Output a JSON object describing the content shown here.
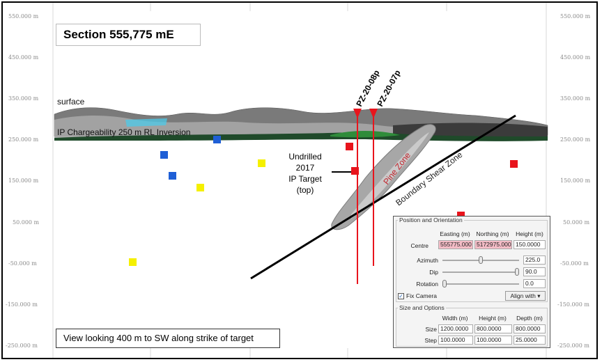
{
  "title": "Section 555,775 mE",
  "footer_note": "View looking 400 m to SW along strike of target",
  "axis": {
    "left_ticks": [
      "550.000 m",
      "450.000 m",
      "350.000 m",
      "250.000 m",
      "150.000 m",
      "50.000 m",
      "-50.000 m",
      "-150.000 m",
      "-250.000 m"
    ],
    "right_ticks": [
      "550.000 m",
      "450.000 m",
      "350.000 m",
      "250.000 m",
      "150.000 m",
      "50.000 m",
      "-50.000 m",
      "-150.000 m",
      "-250.000 m"
    ]
  },
  "labels": {
    "surface": "surface",
    "ip_inversion": "IP Chargeability 250 m RL Inversion",
    "hole_a": "PZ-20-08p",
    "hole_b": "PZ-20-07p",
    "pine_zone": "Pine Zone",
    "shear_zone": "Boundary Shear Zone",
    "target_lines": [
      "Undrilled",
      "2017",
      "IP Target",
      "(top)"
    ]
  },
  "colors": {
    "drillhole": "#e8141c",
    "shear": "#000000",
    "blue_marker": "#1f5fd6",
    "yellow_marker": "#f5f000",
    "red_marker": "#e8141c",
    "ip_band": "#1f4a2a"
  },
  "panel": {
    "section_position": "Position and Orientation",
    "col_easting": "Easting (m)",
    "col_northing": "Northing (m)",
    "col_height": "Height (m)",
    "centre_label": "Centre",
    "centre_easting": "555775.000",
    "centre_northing": "5172975.000",
    "centre_height": "150.0000",
    "azimuth_label": "Azimuth",
    "azimuth_value": "225.0",
    "dip_label": "Dip",
    "dip_value": "90.0",
    "rotation_label": "Rotation",
    "rotation_value": "0.0",
    "fix_camera_label": "Fix Camera",
    "align_with_label": "Align with",
    "section_size": "Size and Options",
    "col_width": "Width (m)",
    "col_height2": "Height (m)",
    "col_depth": "Depth (m)",
    "size_label": "Size",
    "size_width": "1200.0000",
    "size_height": "800.0000",
    "size_depth": "800.0000",
    "step_label": "Step",
    "step_width": "100.0000",
    "step_height": "100.0000",
    "step_depth": "25.0000",
    "azimuth_slider": 0.5,
    "dip_slider": 1.0,
    "rotation_slider": 0.0
  }
}
